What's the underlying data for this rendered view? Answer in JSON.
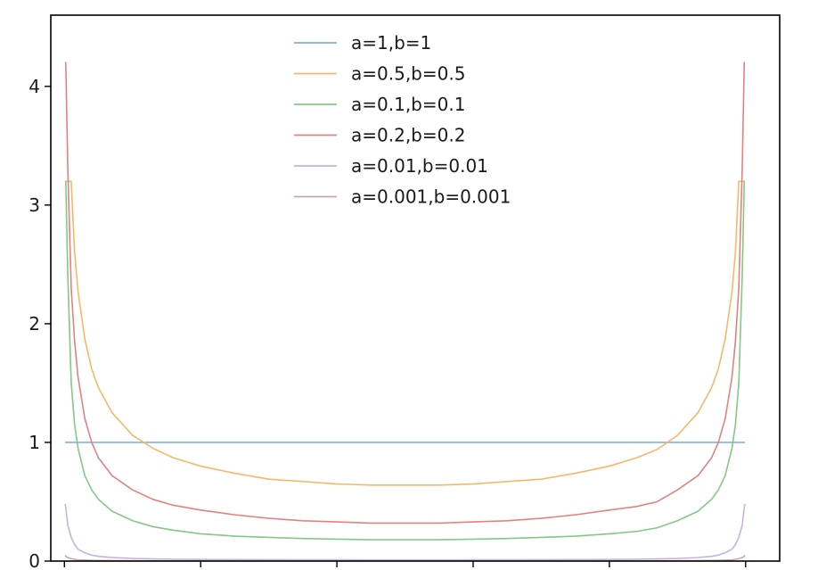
{
  "chart_data": {
    "type": "line",
    "title": "",
    "xlabel": "",
    "ylabel": "",
    "xlim": [
      -0.02,
      1.05
    ],
    "ylim": [
      0,
      4.6
    ],
    "grid": false,
    "legend_position": "top-center",
    "yticks": [
      0,
      1,
      2,
      3,
      4
    ],
    "ytick_labels": [
      "0",
      "1",
      "2",
      "3",
      "4"
    ],
    "xticks": [
      0,
      0.2,
      0.4,
      0.6,
      0.8,
      1.0
    ],
    "xtick_labels": [
      "",
      "",
      "",
      "",
      "",
      ""
    ],
    "x_samples": [
      0.001,
      0.002,
      0.005,
      0.01,
      0.015,
      0.02,
      0.03,
      0.04,
      0.05,
      0.07,
      0.1,
      0.13,
      0.16,
      0.2,
      0.25,
      0.3,
      0.35,
      0.4,
      0.45,
      0.5,
      0.55,
      0.6,
      0.65,
      0.7,
      0.75,
      0.8,
      0.84,
      0.87,
      0.9,
      0.93,
      0.95,
      0.96,
      0.97,
      0.98,
      0.985,
      0.99,
      0.995,
      0.998,
      0.999
    ],
    "series": [
      {
        "name": "a=1,b=1",
        "color": "#7fb3dc",
        "values": [
          1,
          1,
          1,
          1,
          1,
          1,
          1,
          1,
          1,
          1,
          1,
          1,
          1,
          1,
          1,
          1,
          1,
          1,
          1,
          1,
          1,
          1,
          1,
          1,
          1,
          1,
          1,
          1,
          1,
          1,
          1,
          1,
          1,
          1,
          1,
          1,
          1,
          1,
          1
        ]
      },
      {
        "name": "a=0.5,b=0.5",
        "color": "#f5b86a",
        "values": [
          3.2,
          3.2,
          3.2,
          3.2,
          2.6,
          2.27,
          1.87,
          1.62,
          1.46,
          1.25,
          1.06,
          0.95,
          0.87,
          0.8,
          0.74,
          0.69,
          0.67,
          0.65,
          0.64,
          0.64,
          0.64,
          0.65,
          0.67,
          0.69,
          0.74,
          0.8,
          0.87,
          0.94,
          1.06,
          1.25,
          1.46,
          1.62,
          1.87,
          2.27,
          2.6,
          3.2,
          3.2,
          3.2,
          3.2
        ]
      },
      {
        "name": "a=0.1,b=0.1",
        "color": "#82c986",
        "values": [
          3.2,
          3.2,
          2.4,
          1.5,
          1.15,
          0.95,
          0.72,
          0.6,
          0.52,
          0.42,
          0.34,
          0.29,
          0.26,
          0.23,
          0.21,
          0.2,
          0.19,
          0.185,
          0.18,
          0.18,
          0.18,
          0.185,
          0.19,
          0.2,
          0.21,
          0.23,
          0.25,
          0.28,
          0.34,
          0.42,
          0.52,
          0.6,
          0.72,
          0.95,
          1.15,
          1.5,
          2.4,
          3.2,
          3.2
        ]
      },
      {
        "name": "a=0.2,b=0.2",
        "color": "#e58080",
        "values": [
          4.2,
          4.2,
          3.3,
          2.3,
          1.85,
          1.55,
          1.2,
          1.0,
          0.87,
          0.72,
          0.6,
          0.52,
          0.47,
          0.43,
          0.39,
          0.36,
          0.34,
          0.33,
          0.32,
          0.32,
          0.32,
          0.33,
          0.34,
          0.36,
          0.39,
          0.43,
          0.46,
          0.5,
          0.6,
          0.72,
          0.87,
          1.0,
          1.2,
          1.55,
          1.85,
          2.3,
          3.3,
          4.2,
          4.2
        ]
      },
      {
        "name": "a=0.01,b=0.01",
        "color": "#c5b3dc",
        "values": [
          0.48,
          0.45,
          0.3,
          0.2,
          0.14,
          0.1,
          0.07,
          0.05,
          0.04,
          0.03,
          0.022,
          0.018,
          0.016,
          0.014,
          0.013,
          0.012,
          0.011,
          0.011,
          0.01,
          0.01,
          0.01,
          0.011,
          0.011,
          0.012,
          0.013,
          0.014,
          0.016,
          0.018,
          0.022,
          0.03,
          0.04,
          0.05,
          0.07,
          0.1,
          0.14,
          0.2,
          0.3,
          0.45,
          0.48
        ]
      },
      {
        "name": "a=0.001,b=0.001",
        "color": "#c8a9a3",
        "values": [
          0.05,
          0.04,
          0.03,
          0.02,
          0.015,
          0.01,
          0.008,
          0.006,
          0.005,
          0.004,
          0.003,
          0.002,
          0.002,
          0.002,
          0.001,
          0.001,
          0.001,
          0.001,
          0.001,
          0.001,
          0.001,
          0.001,
          0.001,
          0.001,
          0.001,
          0.002,
          0.002,
          0.002,
          0.003,
          0.004,
          0.005,
          0.006,
          0.008,
          0.01,
          0.015,
          0.02,
          0.03,
          0.04,
          0.05
        ]
      }
    ]
  }
}
